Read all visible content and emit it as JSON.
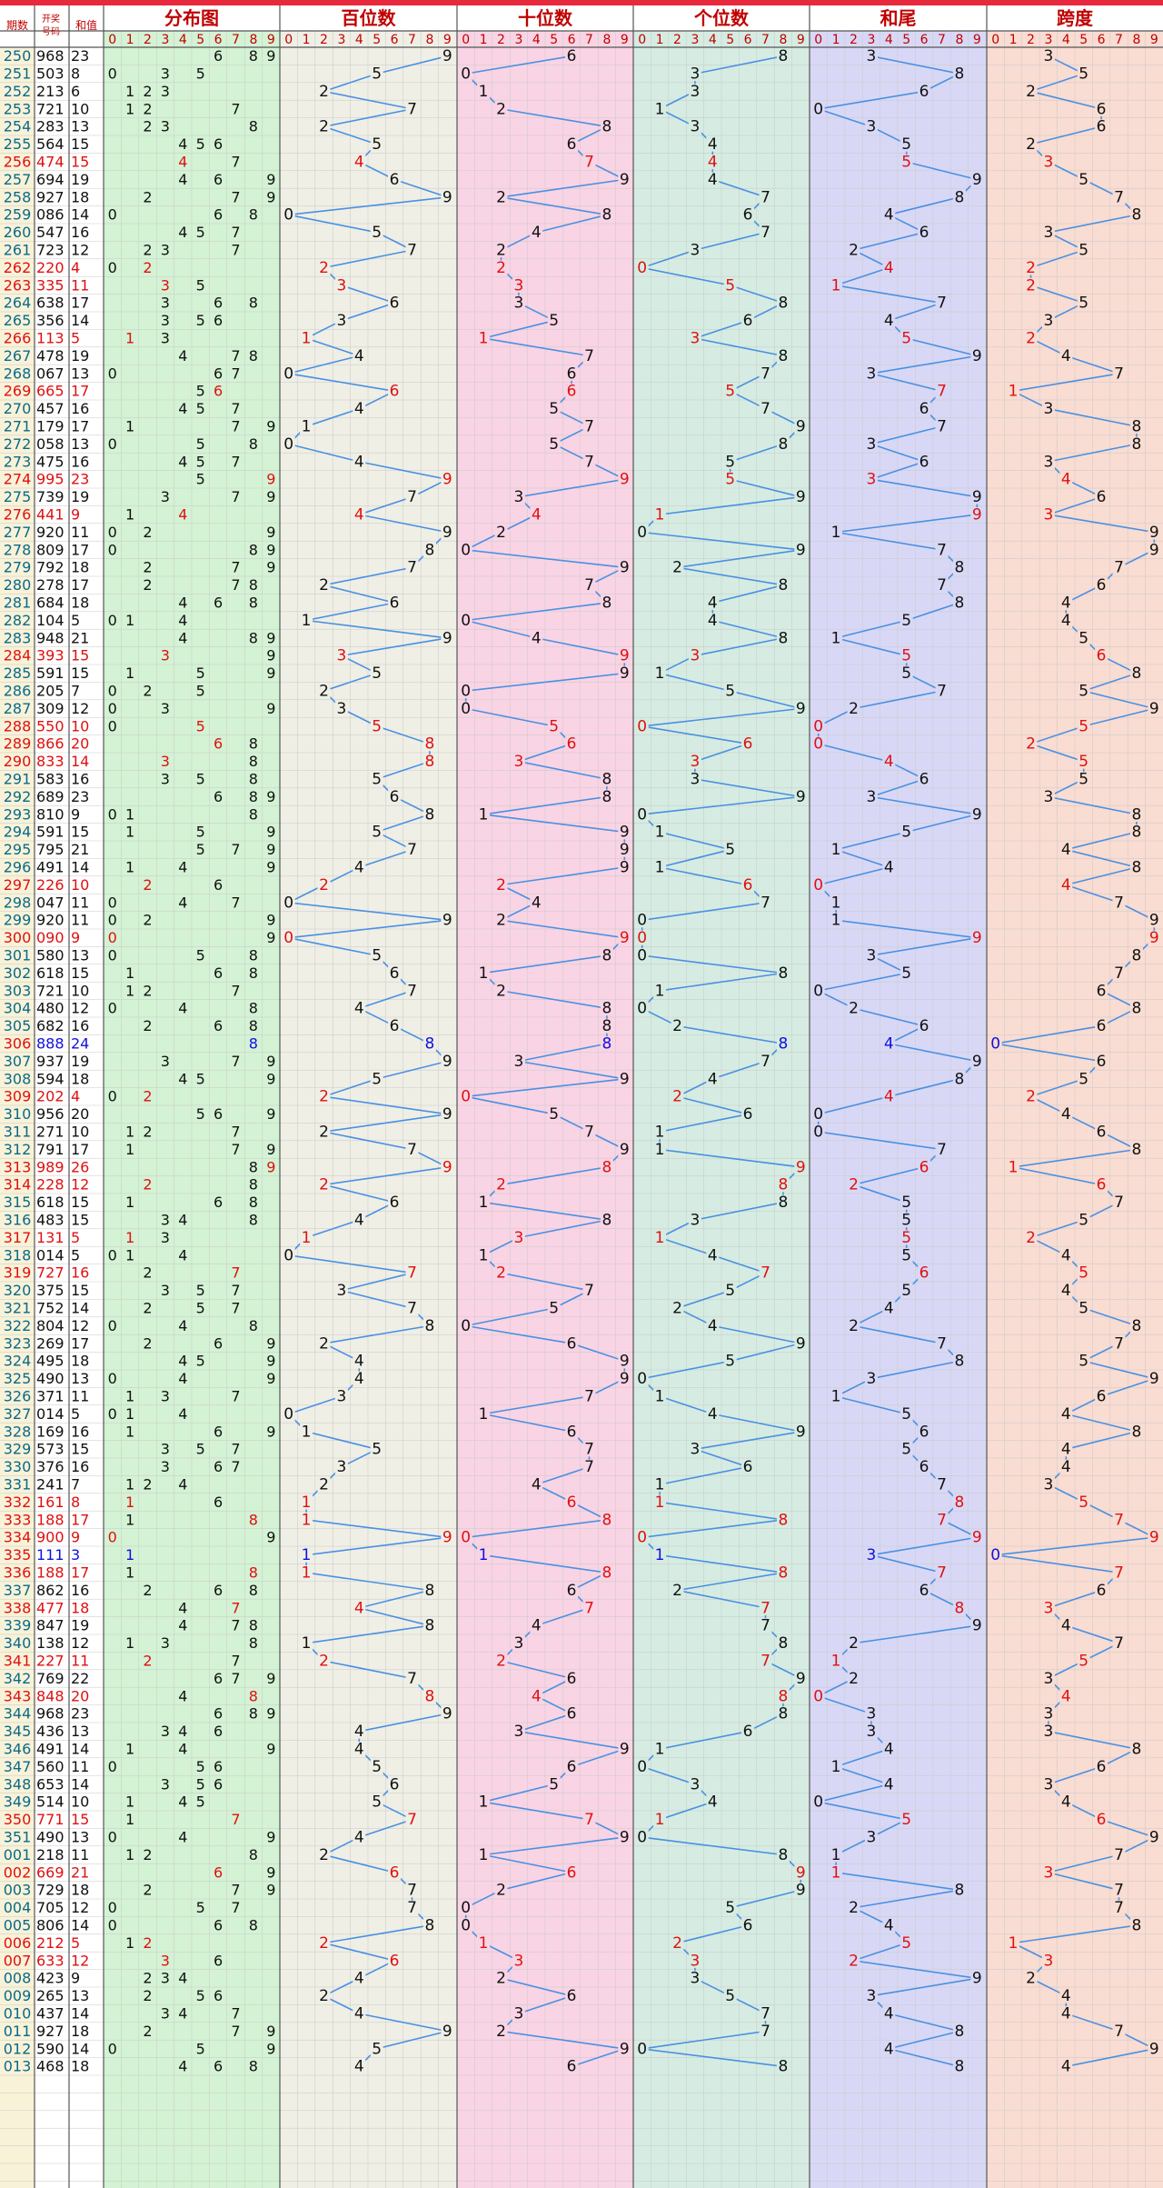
{
  "headers": {
    "period": "期数",
    "draw": "开奖号码",
    "sum": "和值",
    "sections": [
      "分布图",
      "百位数",
      "十位数",
      "个位数",
      "和尾",
      "跨度"
    ],
    "digits": [
      "0",
      "1",
      "2",
      "3",
      "4",
      "5",
      "6",
      "7",
      "8",
      "9"
    ]
  },
  "colors": {
    "header_bar": "#e8283c",
    "header_text": "#c00000",
    "line": "#4a90e2",
    "red": "#e01010",
    "blue": "#1010e0",
    "period_teal": "#0a6a8a",
    "bg_period": "#f8f2d8",
    "bg_distribution": "#d4f2d4",
    "bg_hundreds": "#efefe6",
    "bg_tens": "#f9d4e4",
    "bg_units": "#d6ece2",
    "bg_sumtail": "#d8d8f6",
    "bg_span": "#f9dcd2"
  },
  "chart_data": {
    "type": "table",
    "rows": [
      {
        "p": "250",
        "n": "968",
        "s": "23"
      },
      {
        "p": "251",
        "n": "503",
        "s": "8"
      },
      {
        "p": "252",
        "n": "213",
        "s": "6"
      },
      {
        "p": "253",
        "n": "721",
        "s": "10"
      },
      {
        "p": "254",
        "n": "283",
        "s": "13"
      },
      {
        "p": "255",
        "n": "564",
        "s": "15"
      },
      {
        "p": "256",
        "n": "474",
        "s": "15"
      },
      {
        "p": "257",
        "n": "694",
        "s": "19"
      },
      {
        "p": "258",
        "n": "927",
        "s": "18"
      },
      {
        "p": "259",
        "n": "086",
        "s": "14"
      },
      {
        "p": "260",
        "n": "547",
        "s": "16"
      },
      {
        "p": "261",
        "n": "723",
        "s": "12"
      },
      {
        "p": "262",
        "n": "220",
        "s": "4"
      },
      {
        "p": "263",
        "n": "335",
        "s": "11"
      },
      {
        "p": "264",
        "n": "638",
        "s": "17"
      },
      {
        "p": "265",
        "n": "356",
        "s": "14"
      },
      {
        "p": "266",
        "n": "113",
        "s": "5"
      },
      {
        "p": "267",
        "n": "478",
        "s": "19"
      },
      {
        "p": "268",
        "n": "067",
        "s": "13"
      },
      {
        "p": "269",
        "n": "665",
        "s": "17"
      },
      {
        "p": "270",
        "n": "457",
        "s": "16"
      },
      {
        "p": "271",
        "n": "179",
        "s": "17"
      },
      {
        "p": "272",
        "n": "058",
        "s": "13"
      },
      {
        "p": "273",
        "n": "475",
        "s": "16"
      },
      {
        "p": "274",
        "n": "995",
        "s": "23"
      },
      {
        "p": "275",
        "n": "739",
        "s": "19"
      },
      {
        "p": "276",
        "n": "441",
        "s": "9"
      },
      {
        "p": "277",
        "n": "920",
        "s": "11"
      },
      {
        "p": "278",
        "n": "809",
        "s": "17"
      },
      {
        "p": "279",
        "n": "792",
        "s": "18"
      },
      {
        "p": "280",
        "n": "278",
        "s": "17"
      },
      {
        "p": "281",
        "n": "684",
        "s": "18"
      },
      {
        "p": "282",
        "n": "104",
        "s": "5"
      },
      {
        "p": "283",
        "n": "948",
        "s": "21"
      },
      {
        "p": "284",
        "n": "393",
        "s": "15"
      },
      {
        "p": "285",
        "n": "591",
        "s": "15"
      },
      {
        "p": "286",
        "n": "205",
        "s": "7"
      },
      {
        "p": "287",
        "n": "309",
        "s": "12"
      },
      {
        "p": "288",
        "n": "550",
        "s": "10"
      },
      {
        "p": "289",
        "n": "866",
        "s": "20"
      },
      {
        "p": "290",
        "n": "833",
        "s": "14"
      },
      {
        "p": "291",
        "n": "583",
        "s": "16"
      },
      {
        "p": "292",
        "n": "689",
        "s": "23"
      },
      {
        "p": "293",
        "n": "810",
        "s": "9"
      },
      {
        "p": "294",
        "n": "591",
        "s": "15"
      },
      {
        "p": "295",
        "n": "795",
        "s": "21"
      },
      {
        "p": "296",
        "n": "491",
        "s": "14"
      },
      {
        "p": "297",
        "n": "226",
        "s": "10"
      },
      {
        "p": "298",
        "n": "047",
        "s": "11"
      },
      {
        "p": "299",
        "n": "920",
        "s": "11"
      },
      {
        "p": "300",
        "n": "090",
        "s": "9"
      },
      {
        "p": "301",
        "n": "580",
        "s": "13"
      },
      {
        "p": "302",
        "n": "618",
        "s": "15"
      },
      {
        "p": "303",
        "n": "721",
        "s": "10"
      },
      {
        "p": "304",
        "n": "480",
        "s": "12"
      },
      {
        "p": "305",
        "n": "682",
        "s": "16"
      },
      {
        "p": "306",
        "n": "888",
        "s": "24"
      },
      {
        "p": "307",
        "n": "937",
        "s": "19"
      },
      {
        "p": "308",
        "n": "594",
        "s": "18"
      },
      {
        "p": "309",
        "n": "202",
        "s": "4"
      },
      {
        "p": "310",
        "n": "956",
        "s": "20"
      },
      {
        "p": "311",
        "n": "271",
        "s": "10"
      },
      {
        "p": "312",
        "n": "791",
        "s": "17"
      },
      {
        "p": "313",
        "n": "989",
        "s": "26"
      },
      {
        "p": "314",
        "n": "228",
        "s": "12"
      },
      {
        "p": "315",
        "n": "618",
        "s": "15"
      },
      {
        "p": "316",
        "n": "483",
        "s": "15"
      },
      {
        "p": "317",
        "n": "131",
        "s": "5"
      },
      {
        "p": "318",
        "n": "014",
        "s": "5"
      },
      {
        "p": "319",
        "n": "727",
        "s": "16"
      },
      {
        "p": "320",
        "n": "375",
        "s": "15"
      },
      {
        "p": "321",
        "n": "752",
        "s": "14"
      },
      {
        "p": "322",
        "n": "804",
        "s": "12"
      },
      {
        "p": "323",
        "n": "269",
        "s": "17"
      },
      {
        "p": "324",
        "n": "495",
        "s": "18"
      },
      {
        "p": "325",
        "n": "490",
        "s": "13"
      },
      {
        "p": "326",
        "n": "371",
        "s": "11"
      },
      {
        "p": "327",
        "n": "014",
        "s": "5"
      },
      {
        "p": "328",
        "n": "169",
        "s": "16"
      },
      {
        "p": "329",
        "n": "573",
        "s": "15"
      },
      {
        "p": "330",
        "n": "376",
        "s": "16"
      },
      {
        "p": "331",
        "n": "241",
        "s": "7"
      },
      {
        "p": "332",
        "n": "161",
        "s": "8"
      },
      {
        "p": "333",
        "n": "188",
        "s": "17"
      },
      {
        "p": "334",
        "n": "900",
        "s": "9"
      },
      {
        "p": "335",
        "n": "111",
        "s": "3"
      },
      {
        "p": "336",
        "n": "188",
        "s": "17"
      },
      {
        "p": "337",
        "n": "862",
        "s": "16"
      },
      {
        "p": "338",
        "n": "477",
        "s": "18"
      },
      {
        "p": "339",
        "n": "847",
        "s": "19"
      },
      {
        "p": "340",
        "n": "138",
        "s": "12"
      },
      {
        "p": "341",
        "n": "227",
        "s": "11"
      },
      {
        "p": "342",
        "n": "769",
        "s": "22"
      },
      {
        "p": "343",
        "n": "848",
        "s": "20"
      },
      {
        "p": "344",
        "n": "968",
        "s": "23"
      },
      {
        "p": "345",
        "n": "436",
        "s": "13"
      },
      {
        "p": "346",
        "n": "491",
        "s": "14"
      },
      {
        "p": "347",
        "n": "560",
        "s": "11"
      },
      {
        "p": "348",
        "n": "653",
        "s": "14"
      },
      {
        "p": "349",
        "n": "514",
        "s": "10"
      },
      {
        "p": "350",
        "n": "771",
        "s": "15"
      },
      {
        "p": "351",
        "n": "490",
        "s": "13"
      },
      {
        "p": "001",
        "n": "218",
        "s": "11"
      },
      {
        "p": "002",
        "n": "669",
        "s": "21"
      },
      {
        "p": "003",
        "n": "729",
        "s": "18"
      },
      {
        "p": "004",
        "n": "705",
        "s": "12"
      },
      {
        "p": "005",
        "n": "806",
        "s": "14"
      },
      {
        "p": "006",
        "n": "212",
        "s": "5"
      },
      {
        "p": "007",
        "n": "633",
        "s": "12"
      },
      {
        "p": "008",
        "n": "423",
        "s": "9"
      },
      {
        "p": "009",
        "n": "265",
        "s": "13"
      },
      {
        "p": "010",
        "n": "437",
        "s": "14"
      },
      {
        "p": "011",
        "n": "927",
        "s": "18"
      },
      {
        "p": "012",
        "n": "590",
        "s": "14"
      },
      {
        "p": "013",
        "n": "468",
        "s": "18"
      }
    ]
  }
}
